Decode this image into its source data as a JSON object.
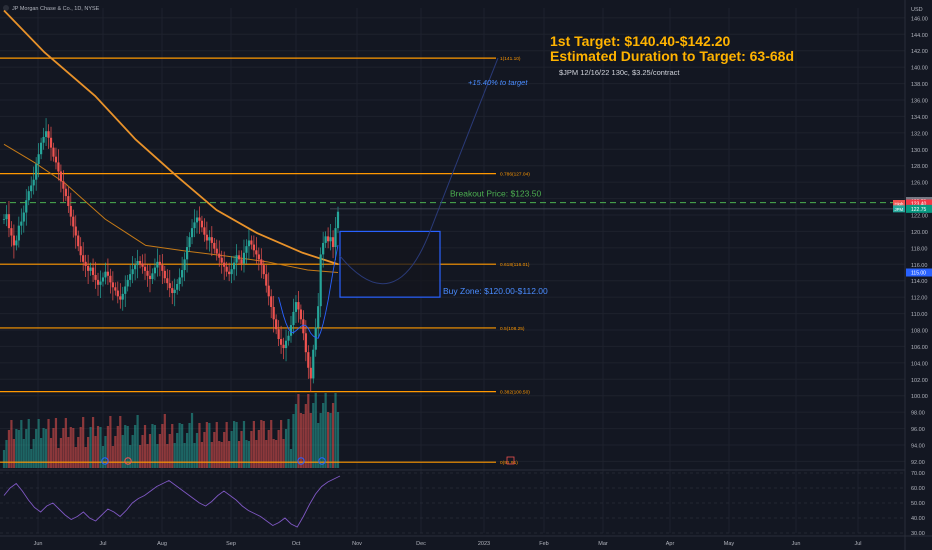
{
  "header": {
    "symbol_line": "JP Morgan Chase & Co., 1D, NYSE",
    "currency": "USD"
  },
  "annotations": {
    "target_line1": "1st Target: $140.40-$142.20",
    "target_line2": "Estimated Duration to Target: 63-68d",
    "option_line": "$JPM 12/16/22 130c, $3.25/contract",
    "pct_to_target": "+15.40% to target",
    "breakout": "Breakout Price: $123.50",
    "buy_zone": "Buy Zone: $120.00-$112.00"
  },
  "fib_levels": [
    {
      "label": "1(141.10)",
      "value": 141.1
    },
    {
      "label": "0.786(127.04)",
      "value": 127.04
    },
    {
      "label": "0.618(116.01)",
      "value": 116.01
    },
    {
      "label": "0.5(108.25)",
      "value": 108.25
    },
    {
      "label": "0.382(100.50)",
      "value": 100.5
    },
    {
      "label": "0(91.91)",
      "value": 91.91
    }
  ],
  "price_tags": [
    {
      "text": "123.70",
      "value": 123.7,
      "color": "#787b86"
    },
    {
      "text": "123.40",
      "value": 123.4,
      "color": "#f23645"
    },
    {
      "text": "122.75",
      "value": 122.75,
      "color": "#089981"
    },
    {
      "text": "115.00",
      "value": 115.0,
      "color": "#2962ff"
    }
  ],
  "tag_prefixes": {
    "high": "High",
    "sym": "JPM"
  },
  "colors": {
    "background": "#131722",
    "up": "#26a69a",
    "down": "#ef5350",
    "fib": "#ff9800",
    "ma200": "#e8922a",
    "ma50": "#c57a17",
    "ma20": "#2962ff",
    "breakout": "#4caf50",
    "zone": "#2962ff",
    "rsi": "#7e57c2",
    "text": "#b2b5be",
    "target_text": "#ffb300"
  },
  "chart_data": {
    "type": "candlestick",
    "title": "",
    "y_axis": {
      "ticks": [
        92,
        94,
        96,
        98,
        100,
        102,
        104,
        106,
        108,
        110,
        112,
        114,
        116,
        118,
        120,
        122,
        124,
        126,
        128,
        130,
        132,
        134,
        136,
        138,
        140,
        142,
        144,
        146
      ],
      "ylim": [
        91.2,
        147.2
      ]
    },
    "x_axis": {
      "labels": [
        "Jun",
        "Jul",
        "Aug",
        "Sep",
        "Oct",
        "Nov",
        "Dec",
        "2023",
        "Feb",
        "Mar",
        "Apr",
        "May",
        "Jun",
        "Jul"
      ]
    },
    "ohlc_close": [
      121.5,
      122.1,
      120.4,
      119.5,
      118.3,
      118.9,
      120.7,
      121.2,
      122.3,
      123.8,
      124.9,
      125.6,
      126.3,
      128.2,
      129.4,
      130.8,
      131.5,
      132.2,
      131.4,
      130.2,
      129.1,
      128.4,
      127.3,
      126.1,
      125.2,
      124.3,
      123.1,
      121.8,
      120.6,
      119.5,
      118.2,
      117.1,
      116.3,
      115.8,
      115.2,
      115.6,
      114.7,
      114.1,
      113.5,
      113.9,
      114.4,
      115.1,
      114.6,
      113.8,
      113.2,
      112.8,
      112.1,
      111.7,
      112.4,
      113.3,
      114.1,
      114.8,
      115.4,
      115.9,
      116.4,
      116.1,
      115.7,
      115.2,
      114.6,
      114.2,
      114.9,
      115.6,
      116.3,
      115.9,
      115.2,
      114.3,
      113.7,
      113.1,
      112.5,
      112.9,
      113.6,
      114.4,
      115.3,
      116.6,
      118.1,
      119.3,
      120.4,
      121.1,
      121.7,
      121.3,
      120.5,
      119.6,
      118.9,
      119.3,
      118.6,
      117.9,
      117.3,
      116.8,
      116.2,
      115.7,
      115.1,
      114.8,
      115.4,
      116.2,
      117.1,
      116.6,
      116.1,
      117.4,
      118.2,
      118.9,
      118.4,
      117.7,
      117.2,
      116.6,
      115.9,
      114.8,
      113.4,
      112.1,
      110.8,
      109.3,
      108.1,
      106.9,
      106.2,
      105.8,
      106.7,
      107.3,
      108.6,
      110.2,
      111.4,
      110.5,
      109.3,
      107.6,
      105.3,
      103.4,
      102.1,
      105.6,
      108.3,
      110.9,
      117.2,
      118.6,
      119.4,
      118.8,
      119.3,
      118.1,
      120.4,
      122.4
    ],
    "series": [
      {
        "name": "",
        "type": "candles_close",
        "values": "ohlc_close"
      }
    ],
    "moving_average_200": [
      [
        0,
        146.9
      ],
      [
        40,
        141.8
      ],
      [
        90,
        136.5
      ],
      [
        130,
        131.2
      ],
      [
        170,
        126.8
      ],
      [
        210,
        122.6
      ],
      [
        250,
        119.8
      ],
      [
        295,
        117.4
      ],
      [
        330,
        116.0
      ]
    ],
    "moving_average_50": [
      [
        0,
        130.6
      ],
      [
        30,
        128.4
      ],
      [
        60,
        125.9
      ],
      [
        100,
        121.5
      ],
      [
        140,
        118.3
      ],
      [
        180,
        117.6
      ],
      [
        220,
        117.0
      ],
      [
        260,
        116.3
      ],
      [
        300,
        115.3
      ],
      [
        330,
        115.0
      ]
    ],
    "rsi": {
      "ylim": [
        30,
        70
      ],
      "ticks": [
        30,
        40,
        50,
        60,
        70
      ],
      "values": [
        55,
        60,
        63,
        58,
        52,
        47,
        44,
        48,
        50,
        46,
        42,
        39,
        41,
        44,
        40,
        38,
        42,
        46,
        44,
        41,
        45,
        50,
        53,
        55,
        58,
        61,
        63,
        65,
        62,
        59,
        56,
        53,
        50,
        48,
        51,
        55,
        58,
        55,
        52,
        48,
        45,
        43,
        41,
        38,
        35,
        37,
        40,
        36,
        34,
        41,
        49,
        56,
        61,
        64,
        66,
        68
      ]
    },
    "buy_zone": [
      112.0,
      120.0
    ],
    "breakout_price": 123.5
  }
}
